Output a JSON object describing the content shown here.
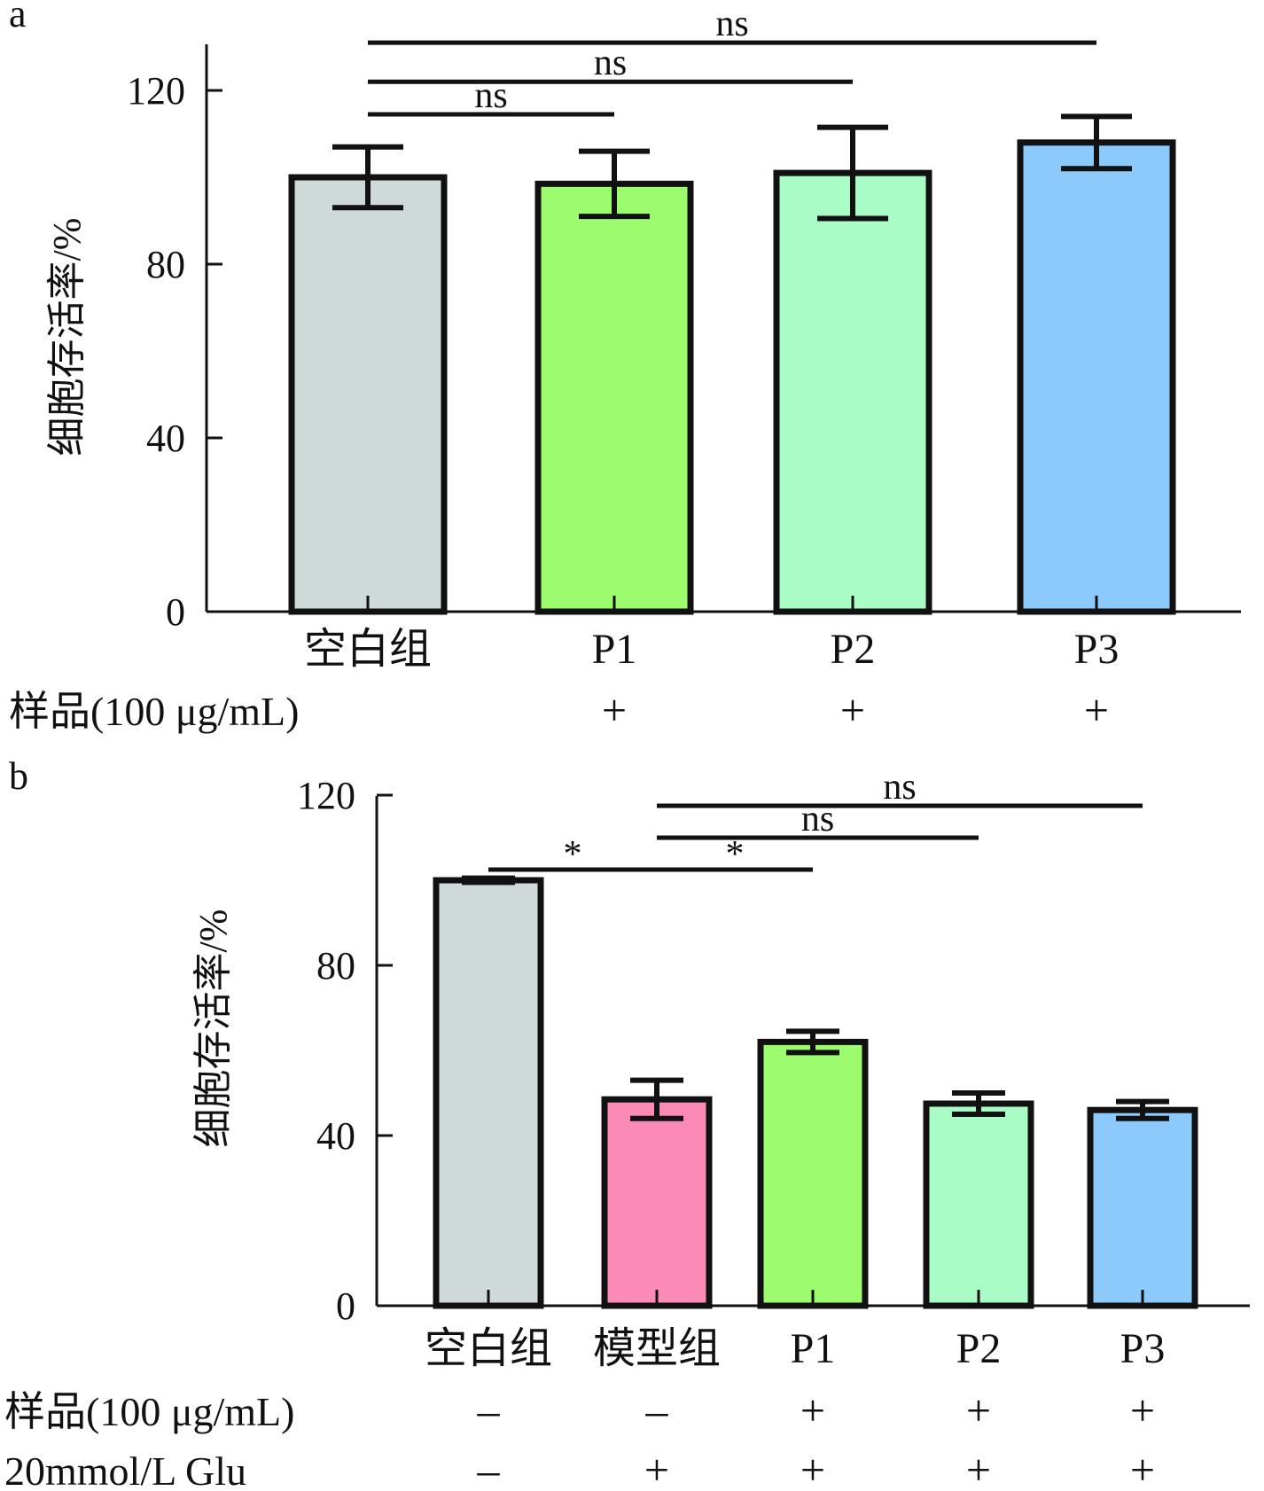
{
  "chart_data": [
    {
      "panel_label": "a",
      "type": "bar",
      "categories": [
        "空白组",
        "P1",
        "P2",
        "P3"
      ],
      "values": [
        100,
        98.5,
        101,
        108
      ],
      "errors": [
        7,
        7.5,
        10.5,
        6
      ],
      "colors": [
        "#cfd9d7",
        "#9cfc6e",
        "#aafcc6",
        "#8dcafc"
      ],
      "ylabel": "细胞存活率/%",
      "ylim": [
        0,
        130
      ],
      "yticks": [
        0,
        40,
        80,
        120
      ],
      "grid": false,
      "treatment_rows": [
        {
          "label": "样品(100 μg/mL)",
          "symbols": [
            "",
            "+",
            "+",
            "+"
          ]
        }
      ],
      "significance": [
        {
          "from": 0,
          "to": 1,
          "label": "ns",
          "level": 114.5
        },
        {
          "from": 0,
          "to": 2,
          "label": "ns",
          "level": 122
        },
        {
          "from": 0,
          "to": 3,
          "label": "ns",
          "level": 131
        }
      ]
    },
    {
      "panel_label": "b",
      "type": "bar",
      "categories": [
        "空白组",
        "模型组",
        "P1",
        "P2",
        "P3"
      ],
      "values": [
        100,
        48.5,
        62,
        47.5,
        46
      ],
      "errors": [
        0.5,
        4.5,
        2.5,
        2.5,
        2
      ],
      "colors": [
        "#cfd9d7",
        "#fc8ab6",
        "#9cfc6e",
        "#aafcc6",
        "#8dcafc"
      ],
      "ylabel": "细胞存活率/%",
      "ylim": [
        0,
        120
      ],
      "yticks": [
        0,
        40,
        80,
        120
      ],
      "grid": false,
      "treatment_rows": [
        {
          "label": "样品(100 μg/mL)",
          "symbols": [
            "–",
            "–",
            "+",
            "+",
            "+"
          ]
        },
        {
          "label": "20mmol/L Glu",
          "symbols": [
            "–",
            "+",
            "+",
            "+",
            "+"
          ]
        }
      ],
      "significance": [
        {
          "from": 0,
          "to": 1,
          "label": "*",
          "level": 102.5
        },
        {
          "from": 1,
          "to": 2,
          "label": "*",
          "level": 102.5
        },
        {
          "from": 1,
          "to": 3,
          "label": "ns",
          "level": 110
        },
        {
          "from": 1,
          "to": 4,
          "label": "ns",
          "level": 117.5
        }
      ]
    }
  ]
}
